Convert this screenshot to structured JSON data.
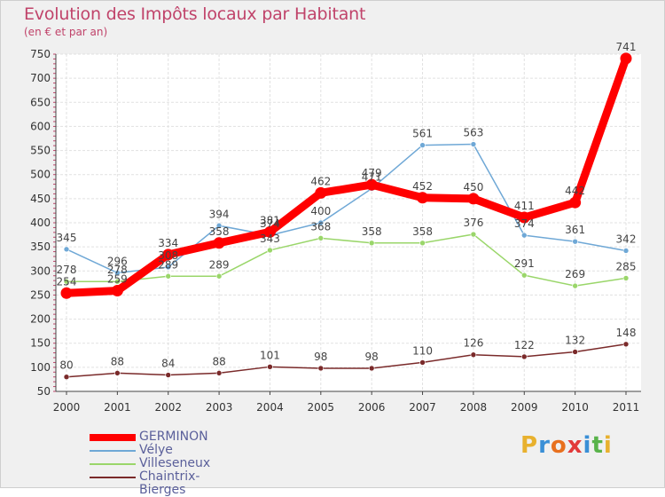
{
  "chart_data": {
    "type": "line",
    "title": "Evolution des Impôts locaux par Habitant",
    "subtitle": "(en € et par an)",
    "xlabel": "",
    "ylabel": "",
    "ylim": [
      50,
      750
    ],
    "yticks": [
      50,
      100,
      150,
      200,
      250,
      300,
      350,
      400,
      450,
      500,
      550,
      600,
      650,
      700,
      750
    ],
    "categories": [
      "2000",
      "2001",
      "2002",
      "2003",
      "2004",
      "2005",
      "2006",
      "2007",
      "2008",
      "2009",
      "2010",
      "2011"
    ],
    "grid": true,
    "legend_position": "bottom-left",
    "series": [
      {
        "name": "GERMINON",
        "color": "#ff0000",
        "values": [
          254,
          259,
          334,
          358,
          381,
          462,
          479,
          452,
          450,
          411,
          442,
          741
        ]
      },
      {
        "name": "Vélye",
        "color": "#6fa8d6",
        "values": [
          345,
          296,
          308,
          394,
          374,
          400,
          471,
          561,
          563,
          374,
          361,
          342
        ]
      },
      {
        "name": "Villeseneux",
        "color": "#9ad66a",
        "values": [
          278,
          278,
          289,
          289,
          343,
          368,
          358,
          358,
          376,
          291,
          269,
          285
        ]
      },
      {
        "name": "Chaintrix-Bierges",
        "color": "#7a2a2a",
        "values": [
          80,
          88,
          84,
          88,
          101,
          98,
          98,
          110,
          126,
          122,
          132,
          148
        ]
      }
    ]
  },
  "legend": {
    "items": [
      {
        "label": "GERMINON"
      },
      {
        "label": "Vélye"
      },
      {
        "label": "Villeseneux"
      },
      {
        "label": "Chaintrix-Bierges"
      }
    ]
  },
  "logo": {
    "text": "Proxiti",
    "letters": [
      "P",
      "r",
      "o",
      "x",
      "i",
      "t",
      "i"
    ],
    "colors": [
      "#e8b12e",
      "#3a8fd6",
      "#e8701e",
      "#e23a3a",
      "#3a8fd6",
      "#59b34a",
      "#e8b12e"
    ]
  }
}
